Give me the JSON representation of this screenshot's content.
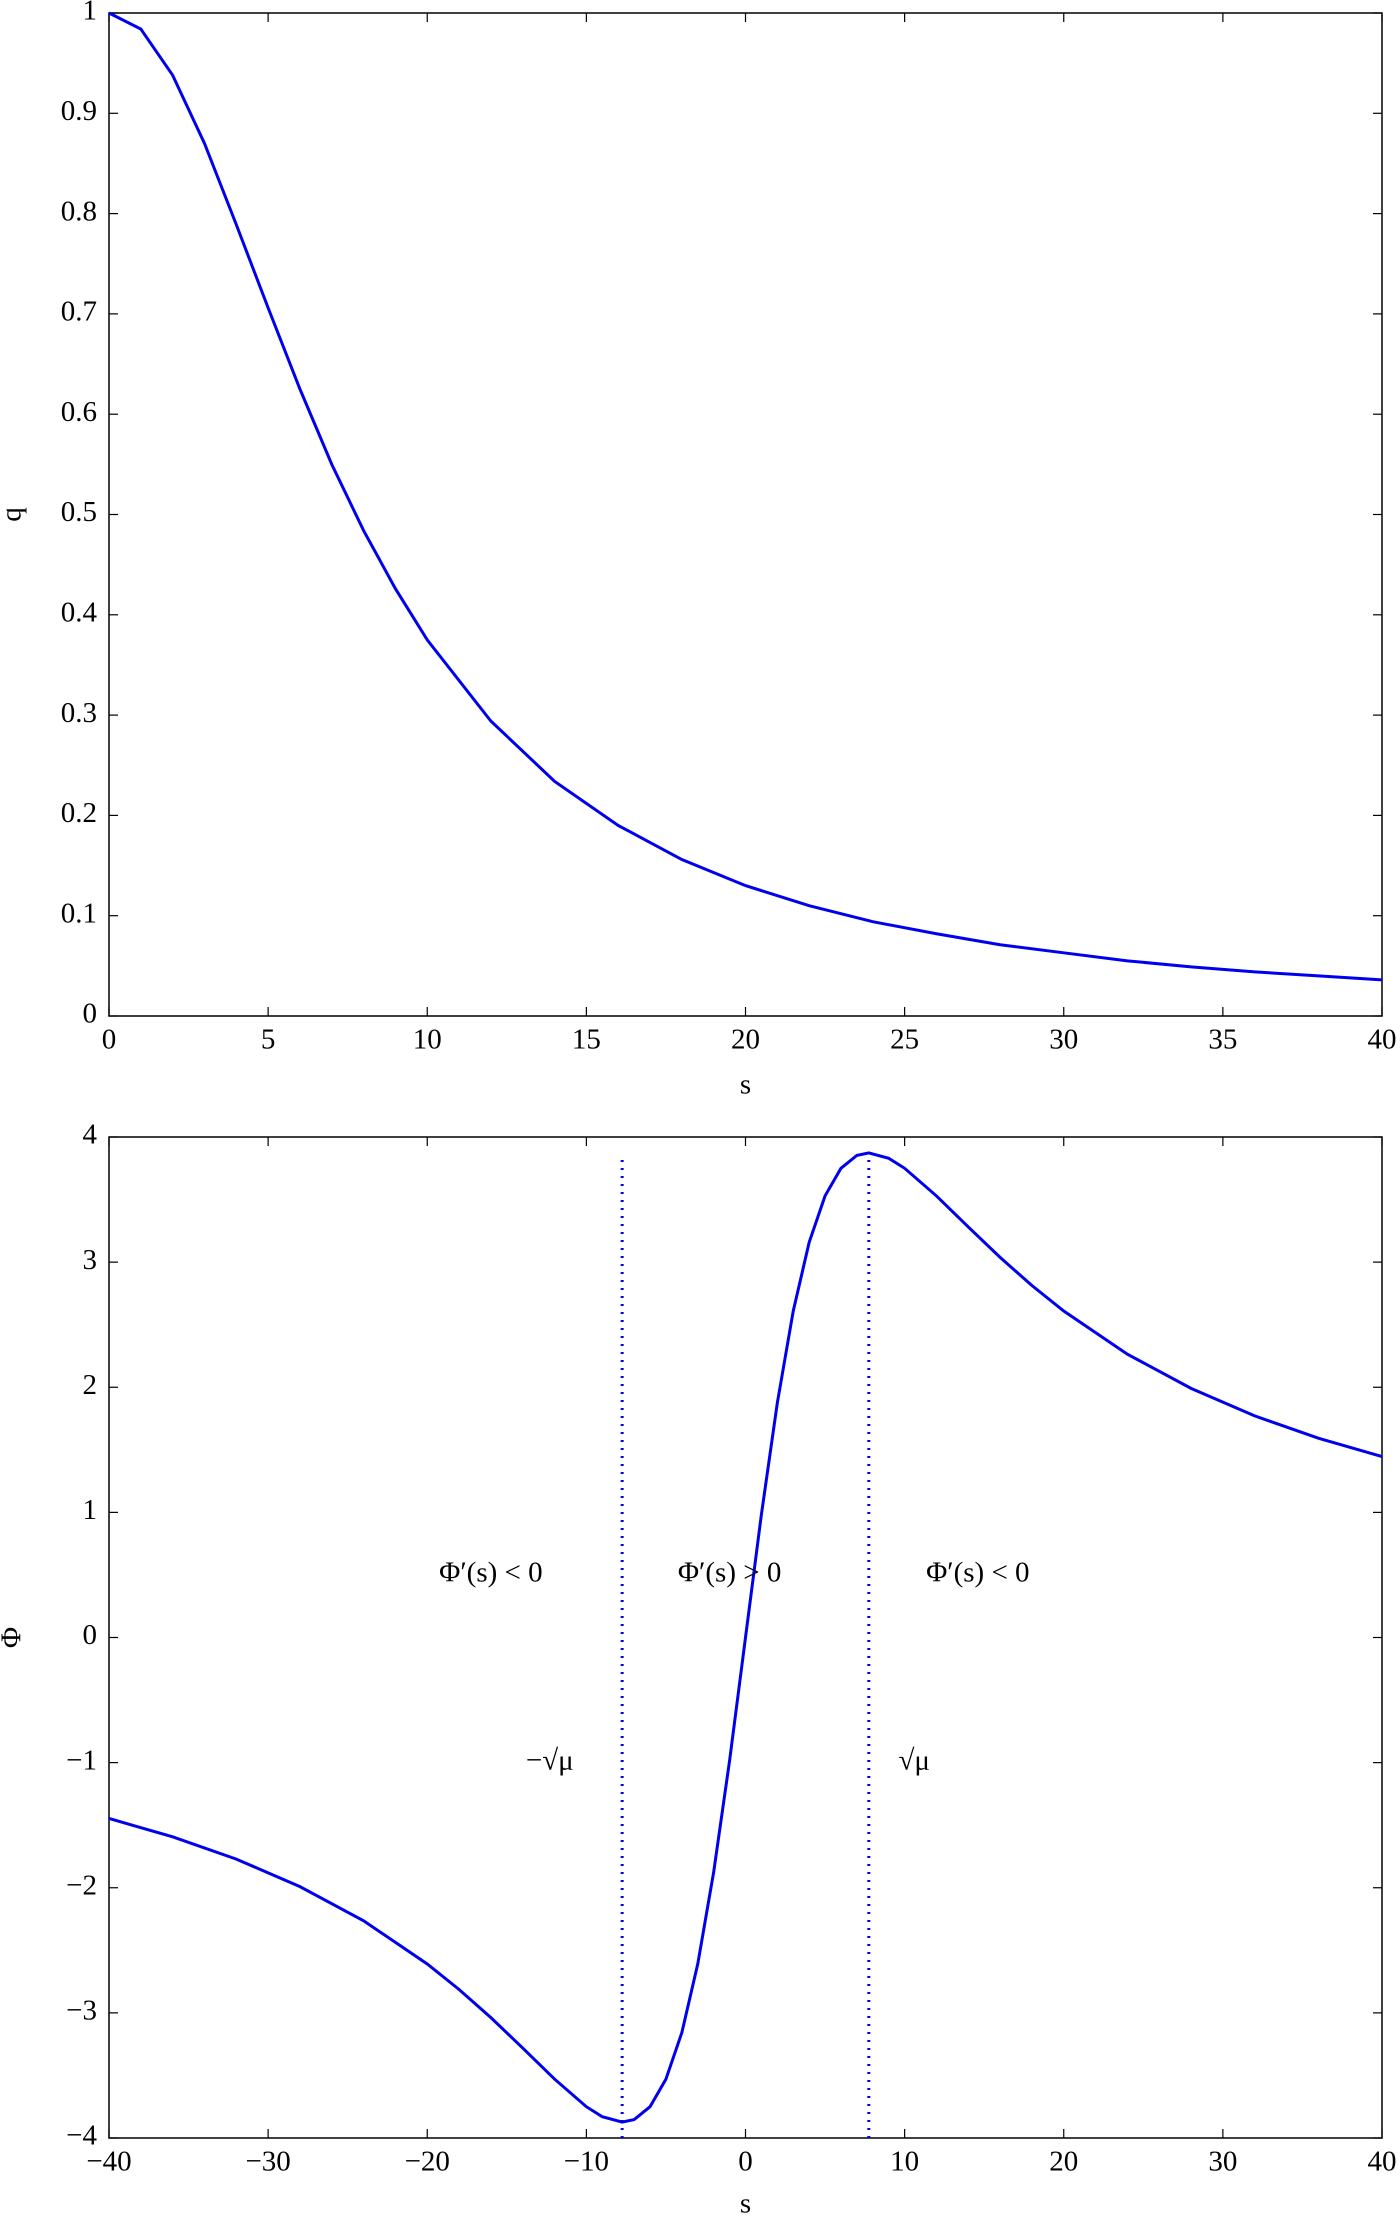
{
  "chart_data": [
    {
      "type": "line",
      "xlabel": "s",
      "ylabel": "q",
      "color": "#0000ee",
      "x": [
        0,
        1,
        2,
        3,
        4,
        5,
        6,
        7,
        8,
        9,
        10,
        12,
        14,
        16,
        18,
        20,
        22,
        24,
        26,
        28,
        30,
        32,
        34,
        36,
        38,
        40
      ],
      "values": [
        1,
        0.984,
        0.938,
        0.87,
        0.789,
        0.706,
        0.625,
        0.55,
        0.484,
        0.426,
        0.375,
        0.294,
        0.234,
        0.19,
        0.156,
        0.13,
        0.11,
        0.094,
        0.082,
        0.071,
        0.063,
        0.055,
        0.049,
        0.044,
        0.04,
        0.036
      ],
      "xlim": [
        0,
        40
      ],
      "xticks": [
        0,
        5,
        10,
        15,
        20,
        25,
        30,
        35,
        40
      ],
      "ylim": [
        0,
        1
      ],
      "yticks": [
        0,
        0.1,
        0.2,
        0.3,
        0.4,
        0.5,
        0.6,
        0.7,
        0.8,
        0.9,
        1
      ]
    },
    {
      "type": "line",
      "xlabel": "s",
      "ylabel": "Φ",
      "color": "#0000ee",
      "x": [
        -40,
        -36,
        -32,
        -28,
        -24,
        -20,
        -18,
        -16,
        -14,
        -12,
        -10,
        -9,
        -7.75,
        -7,
        -6,
        -5,
        -4,
        -3,
        -2,
        -1,
        0,
        1,
        2,
        3,
        4,
        5,
        6,
        7,
        7.75,
        9,
        10,
        12,
        14,
        16,
        18,
        20,
        24,
        28,
        32,
        36,
        40
      ],
      "values": [
        -1.446,
        -1.593,
        -1.771,
        -1.991,
        -2.264,
        -2.609,
        -2.813,
        -3.038,
        -3.281,
        -3.529,
        -3.75,
        -3.83,
        -3.873,
        -3.853,
        -3.75,
        -3.529,
        -3.158,
        -2.609,
        -1.875,
        -0.984,
        0,
        0.984,
        1.875,
        2.609,
        3.158,
        3.529,
        3.75,
        3.853,
        3.873,
        3.83,
        3.75,
        3.529,
        3.281,
        3.038,
        2.813,
        2.609,
        2.264,
        1.991,
        1.771,
        1.593,
        1.446
      ],
      "xlim": [
        -40,
        40
      ],
      "xticks": [
        {
          "value": -40,
          "label": "−40"
        },
        {
          "value": -30,
          "label": "−30"
        },
        {
          "value": -20,
          "label": "−20"
        },
        {
          "value": -10,
          "label": "−10"
        },
        0,
        10,
        20,
        30,
        40
      ],
      "ylim": [
        -4,
        4
      ],
      "yticks": [
        {
          "value": -4,
          "label": "−4"
        },
        {
          "value": -3,
          "label": "−3"
        },
        {
          "value": -2,
          "label": "−2"
        },
        {
          "value": -1,
          "label": "−1"
        },
        0,
        1,
        2,
        3,
        4
      ],
      "vlines": {
        "x": [
          -7.75,
          7.75
        ],
        "y_range": [
          -4,
          3.82
        ]
      },
      "annotations": [
        {
          "text": "Φ′(s) < 0",
          "x": -16,
          "y": 0.5
        },
        {
          "text": "Φ′(s) > 0",
          "x": -1,
          "y": 0.5
        },
        {
          "text": "Φ′(s) < 0",
          "x": 14.6,
          "y": 0.5
        },
        {
          "text": "−√μ",
          "x": -12.3,
          "y": -1
        },
        {
          "text": "√μ",
          "x": 10.6,
          "y": -1
        }
      ]
    }
  ]
}
